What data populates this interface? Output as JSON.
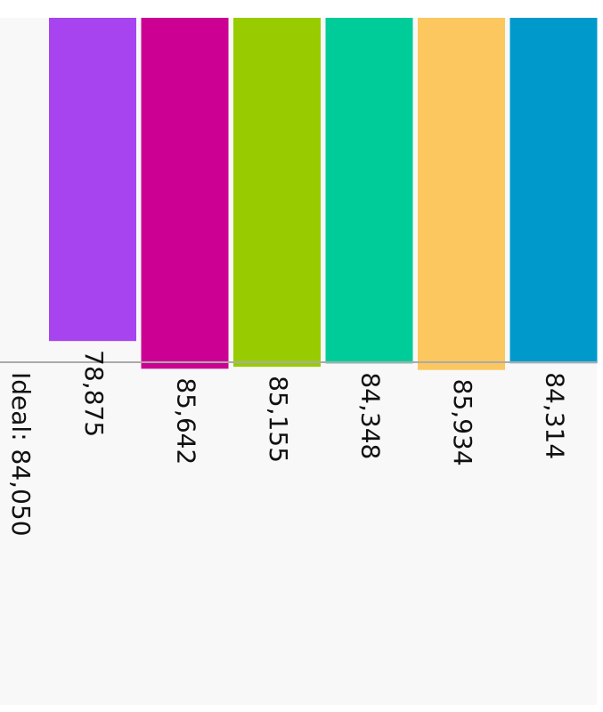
{
  "chart_data": {
    "type": "bar",
    "values": [
      78875,
      85642,
      85155,
      84348,
      85934,
      84314
    ],
    "value_labels": [
      "78,875",
      "85,642",
      "85,155",
      "84,348",
      "85,934",
      "84,314"
    ],
    "colors": [
      "#a744ef",
      "#cc0092",
      "#99cc00",
      "#00cc99",
      "#fcc75f",
      "#0099cc"
    ],
    "ideal": {
      "value": 84050,
      "label": "Ideal: 84,050"
    },
    "ylim": [
      0,
      90000
    ]
  }
}
